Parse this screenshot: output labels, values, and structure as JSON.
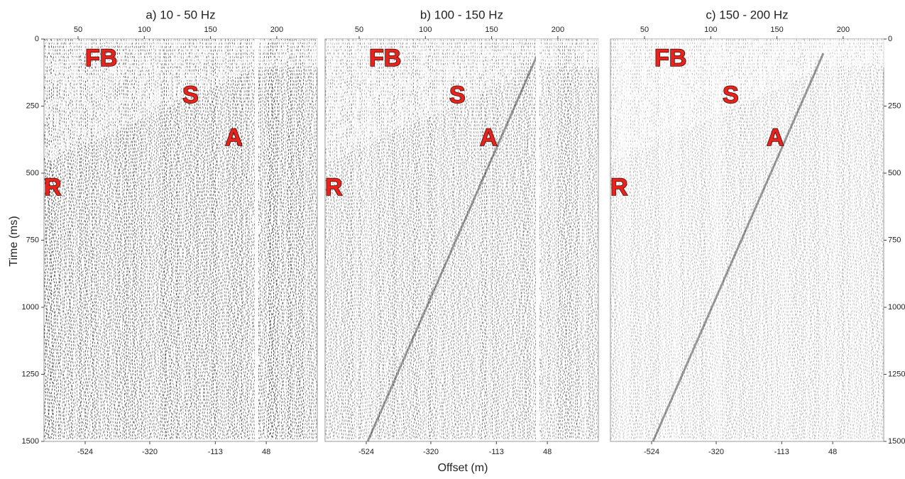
{
  "figure": {
    "y_label": "Time (ms)",
    "x_label": "Offset (m)",
    "time_ticks": [
      0,
      250,
      500,
      750,
      1000,
      1250,
      1500
    ],
    "panels": [
      {
        "title": "a) 10 - 50 Hz",
        "top_ticks": [
          50,
          100,
          150,
          200
        ],
        "bottom_ticks": [
          -524,
          -320,
          -113,
          48
        ],
        "annotations": [
          "FB",
          "S",
          "A",
          "R"
        ]
      },
      {
        "title": "b) 100 - 150 Hz",
        "top_ticks": [
          50,
          100,
          150,
          200
        ],
        "bottom_ticks": [
          -524,
          -320,
          -113,
          48
        ],
        "annotations": [
          "FB",
          "S",
          "A",
          "R"
        ]
      },
      {
        "title": "c) 150 - 200 Hz",
        "top_ticks": [
          50,
          100,
          150,
          200
        ],
        "bottom_ticks": [
          -524,
          -320,
          -113,
          48
        ],
        "annotations": [
          "FB",
          "S",
          "A",
          "R"
        ]
      }
    ]
  }
}
